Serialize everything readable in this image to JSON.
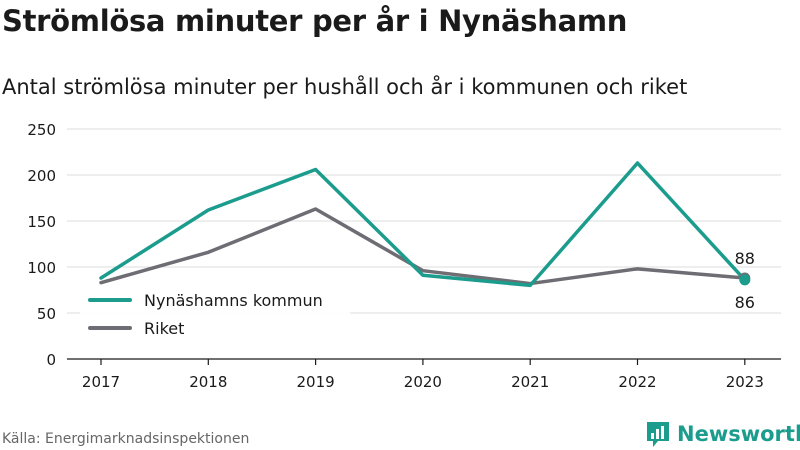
{
  "title": "Strömlösa minuter per år i Nynäshamn",
  "subtitle": "Antal strömlösa minuter per hushåll och år i kommunen och riket",
  "source": "Källa: Energimarknadsinspektionen",
  "brand": {
    "name": "Newsworthy",
    "icon": "bar-chart-logo-icon"
  },
  "chart_data": {
    "type": "line",
    "x": [
      "2017",
      "2018",
      "2019",
      "2020",
      "2021",
      "2022",
      "2023"
    ],
    "ylim": [
      0,
      250
    ],
    "yticks": [
      "0",
      "50",
      "100",
      "150",
      "200",
      "250"
    ],
    "grid": true,
    "legend_position": "left, lower middle",
    "series": [
      {
        "name": "Nynäshamns kommun",
        "color": "#1b9c8d",
        "values": [
          88,
          162,
          206,
          91,
          80,
          213,
          86
        ]
      },
      {
        "name": "Riket",
        "color": "#6f6d74",
        "values": [
          83,
          116,
          163,
          96,
          82,
          98,
          88
        ]
      }
    ],
    "annotations": [
      {
        "series": "Riket",
        "x": "2023",
        "text": "88"
      },
      {
        "series": "Nynäshamns kommun",
        "x": "2023",
        "text": "86"
      }
    ]
  }
}
